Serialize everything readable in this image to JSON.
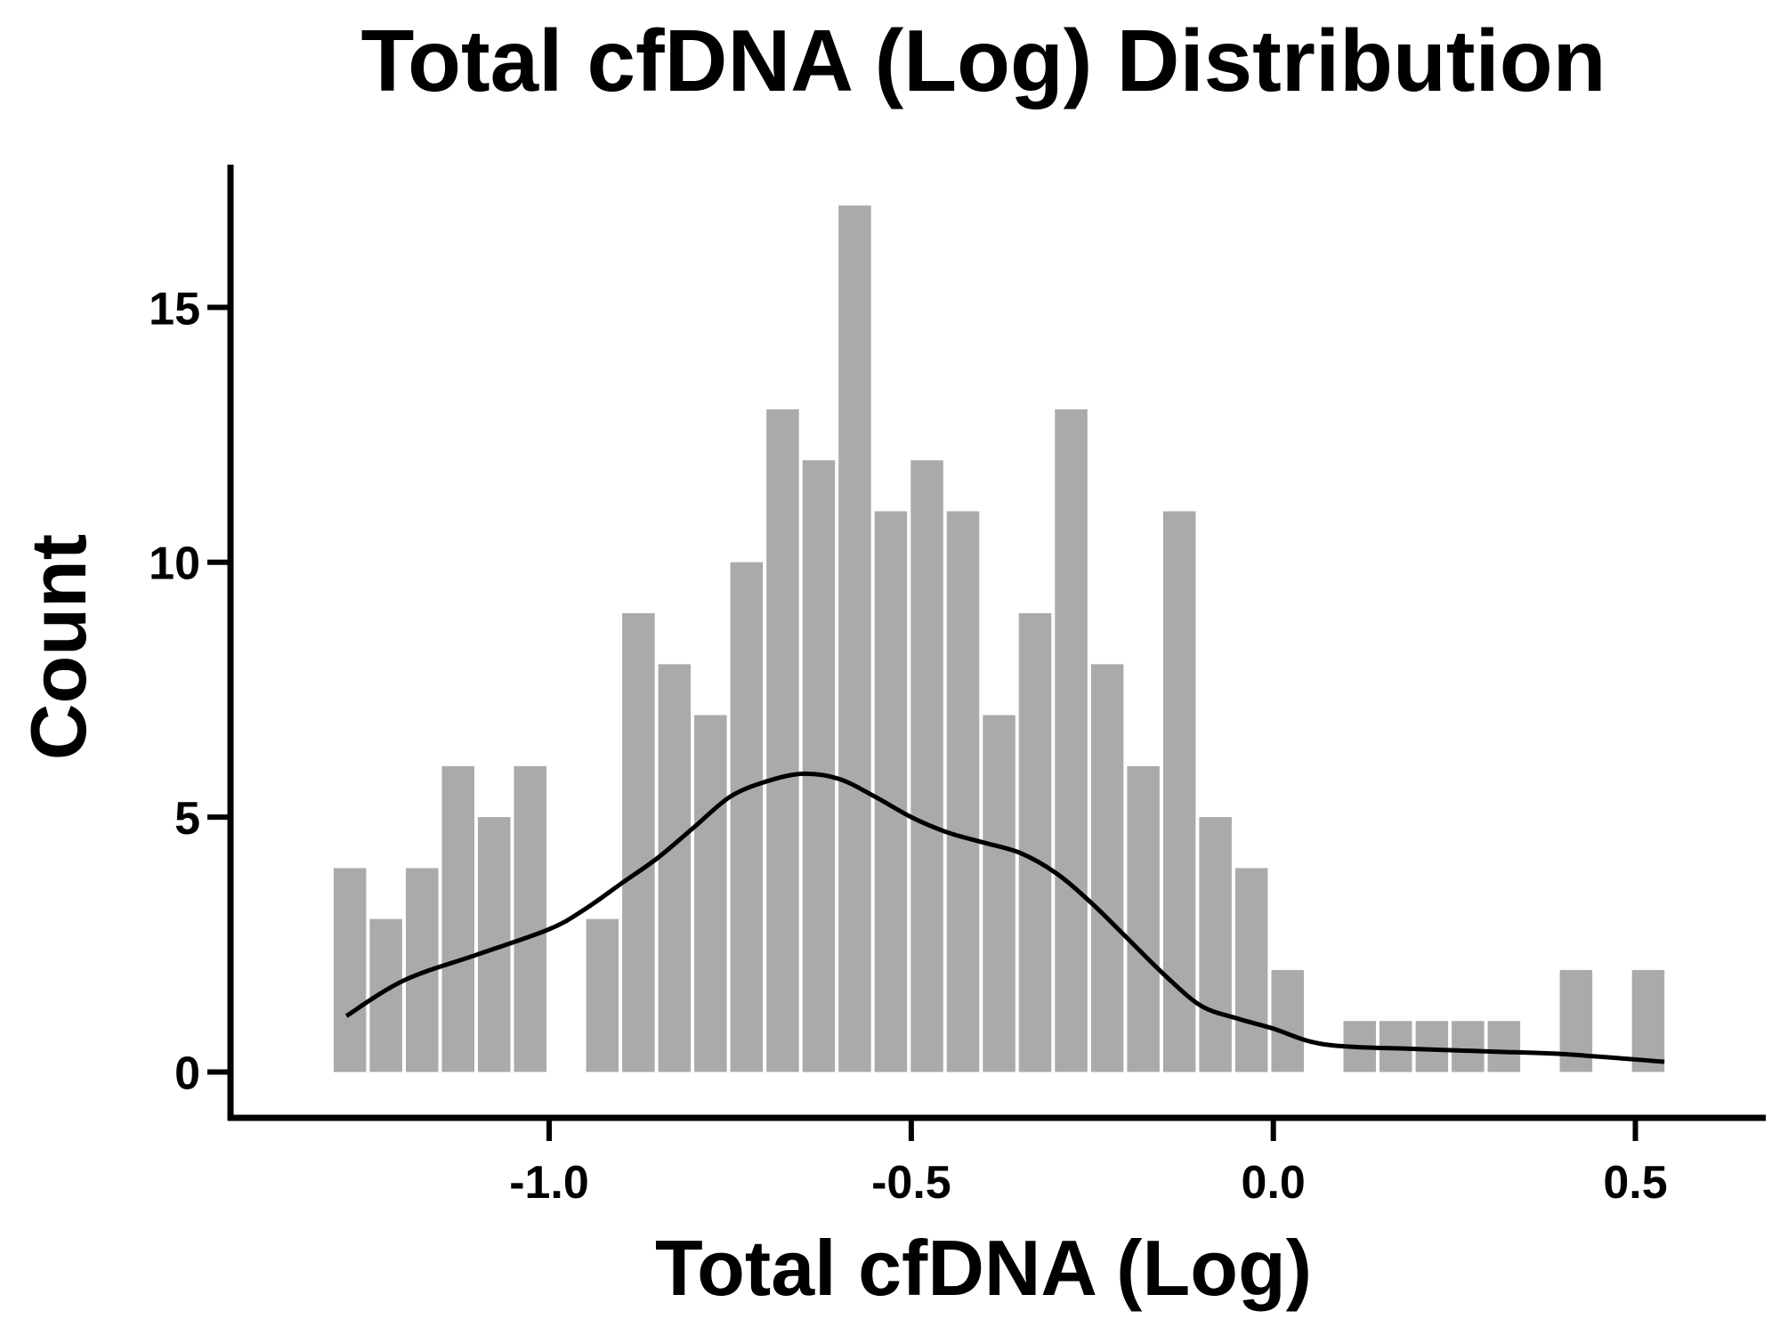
{
  "chart_data": {
    "type": "bar",
    "title": "Total cfDNA (Log) Distribution",
    "xlabel": "Total cfDNA (Log)",
    "ylabel": "Count",
    "xlim": [
      -1.44,
      0.68
    ],
    "ylim": [
      -0.9,
      17.8
    ],
    "x_ticks": [
      -1.0,
      -0.5,
      0.0,
      0.5
    ],
    "x_tick_labels": [
      "-1.0",
      "-0.5",
      "0.0",
      "0.5"
    ],
    "y_ticks": [
      0,
      5,
      10,
      15
    ],
    "y_tick_labels": [
      "0",
      "5",
      "10",
      "15"
    ],
    "grid": false,
    "bar_color": "#aaaaaa",
    "line_color": "#000000",
    "bins": {
      "start": -1.3,
      "width": 0.0498,
      "counts": [
        4,
        3,
        4,
        6,
        5,
        6,
        0,
        3,
        9,
        8,
        7,
        10,
        13,
        12,
        17,
        11,
        12,
        11,
        7,
        9,
        13,
        8,
        6,
        11,
        5,
        4,
        2,
        0,
        1,
        1,
        1,
        1,
        1,
        0,
        2,
        0,
        2
      ]
    },
    "kde": {
      "name": "",
      "x": [
        -1.28,
        -1.2,
        -1.1,
        -1.0,
        -0.95,
        -0.9,
        -0.85,
        -0.8,
        -0.75,
        -0.7,
        -0.65,
        -0.6,
        -0.55,
        -0.5,
        -0.45,
        -0.4,
        -0.35,
        -0.3,
        -0.25,
        -0.2,
        -0.15,
        -0.1,
        -0.05,
        0.0,
        0.05,
        0.1,
        0.2,
        0.3,
        0.4,
        0.54
      ],
      "y": [
        1.1,
        1.8,
        2.3,
        2.8,
        3.2,
        3.7,
        4.2,
        4.8,
        5.4,
        5.7,
        5.85,
        5.75,
        5.4,
        5.0,
        4.7,
        4.5,
        4.3,
        3.9,
        3.3,
        2.6,
        1.9,
        1.3,
        1.05,
        0.85,
        0.6,
        0.5,
        0.45,
        0.4,
        0.35,
        0.2
      ]
    }
  }
}
